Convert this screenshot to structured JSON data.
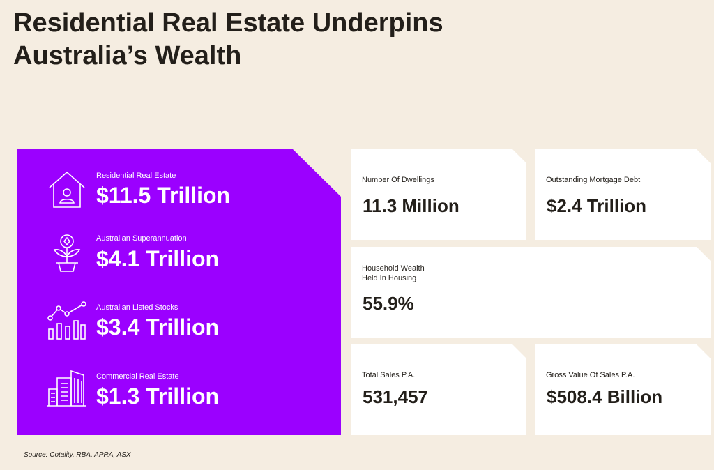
{
  "title": "Residential Real Estate Underpins Australia’s Wealth",
  "stats": [
    {
      "label": "Residential Real Estate",
      "value": "$11.5 Trillion",
      "icon": "house-icon"
    },
    {
      "label": "Australian Superannuation",
      "value": "$4.1 Trillion",
      "icon": "plant-coin-icon"
    },
    {
      "label": "Australian Listed Stocks",
      "value": "$3.4 Trillion",
      "icon": "bar-line-chart-icon"
    },
    {
      "label": "Commercial Real Estate",
      "value": "$1.3 Trillion",
      "icon": "buildings-icon"
    }
  ],
  "cards": {
    "dwellings": {
      "label": "Number Of Dwellings",
      "value": "11.3 Million"
    },
    "mortgage": {
      "label": "Outstanding Mortgage Debt",
      "value": "$2.4 Trillion"
    },
    "household": {
      "label_line1": "Household Wealth",
      "label_line2": "Held In Housing",
      "value": "55.9%"
    },
    "sales": {
      "label": "Total Sales P.A.",
      "value": "531,457"
    },
    "gross": {
      "label": "Gross Value Of Sales P.A.",
      "value": "$508.4 Billion"
    }
  },
  "source": "Source: Cotality, RBA, APRA, ASX",
  "colors": {
    "background": "#f5ede1",
    "accent": "#9b00ff",
    "text": "#231f1a",
    "card": "#ffffff"
  }
}
